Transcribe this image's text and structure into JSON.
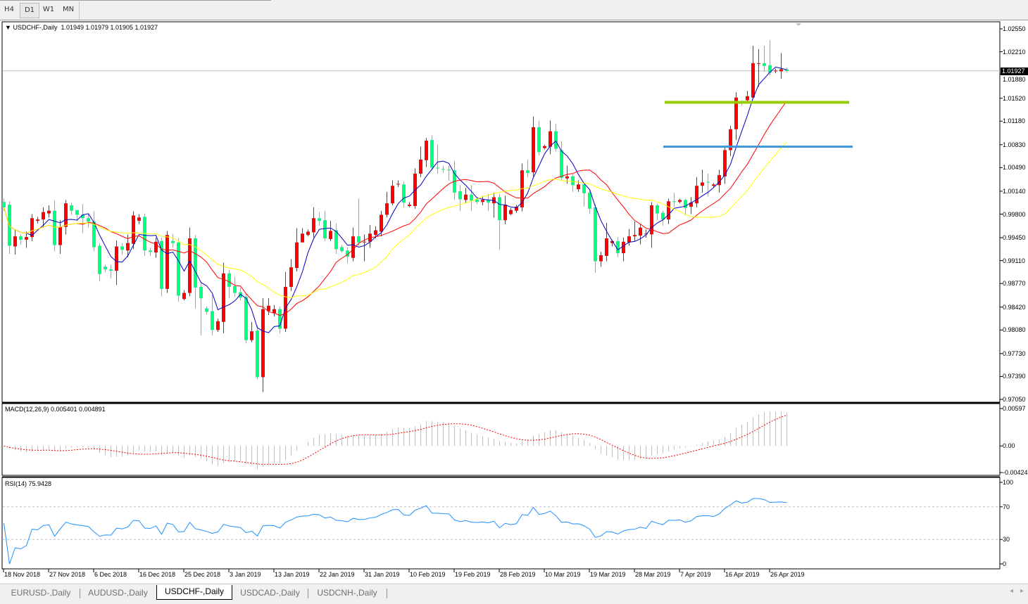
{
  "toolbar": {
    "timeframes": [
      "H4",
      "D1",
      "W1",
      "MN"
    ],
    "active": "D1"
  },
  "main": {
    "symbol_label": "USDCHF-,Daily",
    "ohlc_label": "1.01949 1.01979 1.01905 1.01927",
    "current_price": "1.01927",
    "price_axis_labels": [
      "1.02550",
      "1.02210",
      "1.01880",
      "1.01520",
      "1.01180",
      "1.00830",
      "1.00490",
      "1.00140",
      "0.99800",
      "0.99450",
      "0.99110",
      "0.98770",
      "0.98420",
      "0.98080",
      "0.97730",
      "0.97390",
      "0.97050"
    ]
  },
  "macd": {
    "label": "MACD(12,26,9) 0.005401 0.004891",
    "axis_labels": [
      "0.00597",
      "0.00",
      "-0.00424"
    ]
  },
  "rsi": {
    "label": "RSI(14) 75.9428",
    "axis_labels": [
      "100",
      "70",
      "30",
      "0"
    ]
  },
  "colors": {
    "bull": "#ff0000",
    "bear": "#00ff7f",
    "ma_fast": "#0000c8",
    "ma_mid": "#ff0000",
    "ma_slow": "#ffff00",
    "level_upper": "#99cc00",
    "level_lower": "#3c96dc",
    "macd_hist": "#c0c0c0",
    "macd_signal": "#ff0000",
    "rsi_line": "#1e90ff"
  },
  "tabs": [
    "EURUSD-,Daily",
    "AUDUSD-,Daily",
    "USDCHF-,Daily",
    "USDCAD-,Daily",
    "USDCNH-,Daily"
  ],
  "active_tab": "USDCHF-,Daily",
  "chart_data": {
    "type": "candlestick",
    "symbol": "USDCHF-",
    "timeframe": "Daily",
    "ylim": [
      0.9705,
      1.0255
    ],
    "x_tick_labels": [
      "18 Nov 2018",
      "27 Nov 2018",
      "6 Dec 2018",
      "16 Dec 2018",
      "25 Dec 2018",
      "3 Jan 2019",
      "13 Jan 2019",
      "22 Jan 2019",
      "31 Jan 2019",
      "10 Feb 2019",
      "19 Feb 2019",
      "28 Feb 2019",
      "10 Mar 2019",
      "19 Mar 2019",
      "28 Mar 2019",
      "7 Apr 2019",
      "16 Apr 2019",
      "26 Apr 2019"
    ],
    "horizontal_levels": [
      1.0146,
      1.008
    ],
    "candles_ohlc": [
      [
        0.9998,
        1.0003,
        0.9985,
        0.999
      ],
      [
        0.9994,
        0.9999,
        0.9921,
        0.9933
      ],
      [
        0.9932,
        0.9957,
        0.992,
        0.9947
      ],
      [
        0.9947,
        0.995,
        0.9935,
        0.9942
      ],
      [
        0.9942,
        0.9954,
        0.993,
        0.9946
      ],
      [
        0.9946,
        0.998,
        0.994,
        0.9974
      ],
      [
        0.997,
        0.9976,
        0.9966,
        0.9972
      ],
      [
        0.9972,
        0.999,
        0.996,
        0.9983
      ],
      [
        0.9981,
        0.9993,
        0.9975,
        0.9985
      ],
      [
        0.9985,
        1.0,
        0.9925,
        0.9934
      ],
      [
        0.9934,
        0.9971,
        0.9921,
        0.9961
      ],
      [
        0.9961,
        1.0001,
        0.995,
        0.9996
      ],
      [
        0.9993,
        0.9997,
        0.9979,
        0.9985
      ],
      [
        0.9986,
        0.9986,
        0.997,
        0.9979
      ],
      [
        0.9979,
        0.9995,
        0.9952,
        0.9974
      ],
      [
        0.9974,
        0.998,
        0.996,
        0.9969
      ],
      [
        0.9969,
        0.9984,
        0.9925,
        0.9931
      ],
      [
        0.9933,
        0.9937,
        0.988,
        0.9891
      ],
      [
        0.9902,
        0.9905,
        0.9894,
        0.9898
      ],
      [
        0.9898,
        0.9905,
        0.9885,
        0.9896
      ],
      [
        0.9896,
        0.9941,
        0.9875,
        0.9932
      ],
      [
        0.9932,
        0.9937,
        0.992,
        0.9927
      ],
      [
        0.9926,
        0.995,
        0.9916,
        0.9937
      ],
      [
        0.9936,
        0.9984,
        0.9928,
        0.9978
      ],
      [
        0.997,
        0.998,
        0.9965,
        0.9975
      ],
      [
        0.9976,
        0.9981,
        0.9918,
        0.9926
      ],
      [
        0.9926,
        0.993,
        0.9918,
        0.9924
      ],
      [
        0.9923,
        0.9945,
        0.9915,
        0.9939
      ],
      [
        0.994,
        0.9945,
        0.9858,
        0.9869
      ],
      [
        0.9869,
        0.9955,
        0.9863,
        0.9949
      ],
      [
        0.994,
        0.995,
        0.993,
        0.9937
      ],
      [
        0.9938,
        0.9944,
        0.985,
        0.9859
      ],
      [
        0.9854,
        0.9867,
        0.9852,
        0.9863
      ],
      [
        0.9863,
        0.996,
        0.9858,
        0.9944
      ],
      [
        0.9944,
        0.9949,
        0.984,
        0.9871
      ],
      [
        0.9872,
        0.9877,
        0.98,
        0.9855
      ],
      [
        0.984,
        0.9843,
        0.9831,
        0.9835
      ],
      [
        0.9836,
        0.986,
        0.98,
        0.9808
      ],
      [
        0.9808,
        0.9825,
        0.9805,
        0.9821
      ],
      [
        0.982,
        0.9908,
        0.9803,
        0.9892
      ],
      [
        0.9892,
        0.9897,
        0.9855,
        0.9872
      ],
      [
        0.9873,
        0.9887,
        0.9857,
        0.9863
      ],
      [
        0.9864,
        0.9871,
        0.9852,
        0.9856
      ],
      [
        0.9857,
        0.9862,
        0.9788,
        0.9793
      ],
      [
        0.9793,
        0.982,
        0.979,
        0.9806
      ],
      [
        0.9807,
        0.9815,
        0.9735,
        0.9738
      ],
      [
        0.9738,
        0.9855,
        0.9716,
        0.9839
      ],
      [
        0.9836,
        0.9855,
        0.983,
        0.9844
      ],
      [
        0.9833,
        0.9845,
        0.9828,
        0.9839
      ],
      [
        0.9839,
        0.9843,
        0.9803,
        0.981
      ],
      [
        0.981,
        0.9894,
        0.9805,
        0.9872
      ],
      [
        0.9872,
        0.9913,
        0.9866,
        0.9901
      ],
      [
        0.99,
        0.9959,
        0.9895,
        0.9938
      ],
      [
        0.9938,
        0.9959,
        0.994,
        0.9951
      ],
      [
        0.9949,
        0.9957,
        0.9947,
        0.9954
      ],
      [
        0.9953,
        0.999,
        0.9945,
        0.9974
      ],
      [
        0.9974,
        0.9983,
        0.9963,
        0.997
      ],
      [
        0.9971,
        0.9985,
        0.994,
        0.9944
      ],
      [
        0.9943,
        0.997,
        0.994,
        0.9955
      ],
      [
        0.9956,
        0.9966,
        0.9921,
        0.9928
      ],
      [
        0.9931,
        0.9934,
        0.9923,
        0.9925
      ],
      [
        0.9926,
        0.9931,
        0.9907,
        0.9917
      ],
      [
        0.9915,
        0.996,
        0.991,
        0.9947
      ],
      [
        0.9947,
        1.0003,
        0.9933,
        0.9938
      ],
      [
        0.9938,
        0.995,
        0.991,
        0.9939
      ],
      [
        0.9939,
        0.9964,
        0.993,
        0.9951
      ],
      [
        0.9949,
        0.9962,
        0.9944,
        0.9956
      ],
      [
        0.9954,
        0.9985,
        0.9947,
        0.9979
      ],
      [
        0.9979,
        1.0013,
        0.9975,
        0.9996
      ],
      [
        0.9996,
        1.003,
        0.9993,
        1.0022
      ],
      [
        1.0024,
        1.003,
        1.002,
        1.0025
      ],
      [
        1.0024,
        1.0028,
        0.999,
        0.9997
      ],
      [
        0.9992,
        0.9998,
        0.999,
        0.9994
      ],
      [
        0.9992,
        1.0048,
        0.9988,
        1.004
      ],
      [
        1.004,
        1.008,
        1.0035,
        1.0061
      ],
      [
        1.006,
        1.0093,
        1.005,
        1.0089
      ],
      [
        1.009,
        1.0097,
        1.0045,
        1.0049
      ],
      [
        1.0049,
        1.0083,
        1.004,
        1.0048
      ],
      [
        1.0047,
        1.0052,
        1.0041,
        1.0046
      ],
      [
        1.0046,
        1.0052,
        1.003,
        1.0045
      ],
      [
        1.0045,
        1.0059,
        1.0001,
        1.0012
      ],
      [
        1.0014,
        1.0023,
        0.9985,
        1.0002
      ],
      [
        1.0001,
        1.0019,
        0.9996,
        1.0009
      ],
      [
        1.0009,
        1.0023,
        0.9985,
        1.0
      ],
      [
        1.0002,
        1.0005,
        0.9995,
        0.9998
      ],
      [
        0.9998,
        1.0007,
        0.9993,
        1.0001
      ],
      [
        1.0001,
        1.001,
        0.9985,
        0.9997
      ],
      [
        0.9996,
        1.0012,
        0.9975,
        1.0005
      ],
      [
        1.0005,
        1.001,
        0.9927,
        0.9971
      ],
      [
        0.9971,
        1.0007,
        0.9965,
        0.9994
      ],
      [
        0.998,
        0.9989,
        0.9978,
        0.9986
      ],
      [
        0.9985,
        0.9994,
        0.9982,
        0.9991
      ],
      [
        0.999,
        1.0055,
        0.9984,
        1.0045
      ],
      [
        1.0045,
        1.0061,
        1.0035,
        1.0041
      ],
      [
        1.0042,
        1.0125,
        1.0036,
        1.0109
      ],
      [
        1.0109,
        1.0119,
        1.0067,
        1.0072
      ],
      [
        1.0078,
        1.0083,
        1.0076,
        1.0081
      ],
      [
        1.008,
        1.0119,
        1.0069,
        1.0103
      ],
      [
        1.0103,
        1.0114,
        1.0073,
        1.0077
      ],
      [
        1.0075,
        1.0088,
        1.003,
        1.0034
      ],
      [
        1.0033,
        1.0052,
        1.0025,
        1.0036
      ],
      [
        1.0036,
        1.0039,
        1.0013,
        1.0023
      ],
      [
        1.0017,
        1.003,
        1.0013,
        1.0024
      ],
      [
        1.0024,
        1.0027,
        0.9991,
        1.0011
      ],
      [
        1.0012,
        1.0015,
        0.998,
        0.9988
      ],
      [
        0.999,
        0.9995,
        0.9893,
        0.991
      ],
      [
        0.991,
        0.9924,
        0.9902,
        0.9919
      ],
      [
        0.9918,
        0.9967,
        0.991,
        0.9944
      ],
      [
        0.9937,
        0.9942,
        0.9932,
        0.994
      ],
      [
        0.994,
        0.9946,
        0.9916,
        0.9922
      ],
      [
        0.9922,
        0.9945,
        0.991,
        0.9939
      ],
      [
        0.9938,
        0.9958,
        0.9933,
        0.9947
      ],
      [
        0.9947,
        0.9969,
        0.994,
        0.9949
      ],
      [
        0.9948,
        0.9965,
        0.9935,
        0.996
      ],
      [
        0.9951,
        0.9957,
        0.9945,
        0.9951
      ],
      [
        0.995,
        0.9998,
        0.993,
        0.9993
      ],
      [
        0.9993,
        0.9995,
        0.9971,
        0.9981
      ],
      [
        0.9982,
        0.9985,
        0.9963,
        0.9972
      ],
      [
        0.9972,
        1.0003,
        0.9965,
        0.9999
      ],
      [
        0.9999,
        1.0012,
        0.9991,
        0.9998
      ],
      [
        0.9998,
        1.0003,
        0.9996,
        1.0001
      ],
      [
        1.0001,
        1.0003,
        0.9978,
        0.9989
      ],
      [
        0.9991,
        1.0005,
        0.998,
        0.9997
      ],
      [
        0.9996,
        1.0035,
        0.999,
        1.0022
      ],
      [
        1.0022,
        1.0046,
        1.0012,
        1.0027
      ],
      [
        1.0028,
        1.004,
        1.0006,
        1.0027
      ],
      [
        1.0022,
        1.0026,
        1.002,
        1.0024
      ],
      [
        1.0023,
        1.0046,
        1.0012,
        1.0038
      ],
      [
        1.0036,
        1.0079,
        1.0025,
        1.0075
      ],
      [
        1.0075,
        1.0111,
        1.0066,
        1.0106
      ],
      [
        1.0106,
        1.0161,
        1.009,
        1.0153
      ],
      [
        1.0146,
        1.0149,
        1.0141,
        1.0144
      ],
      [
        1.0149,
        1.0163,
        1.0147,
        1.0155
      ],
      [
        1.0153,
        1.023,
        1.0151,
        1.0204
      ],
      [
        1.0203,
        1.0225,
        1.0169,
        1.0204
      ],
      [
        1.0204,
        1.023,
        1.0191,
        1.02
      ],
      [
        1.0201,
        1.0238,
        1.0186,
        1.019
      ],
      [
        1.0192,
        1.0196,
        1.0189,
        1.0193
      ],
      [
        1.0192,
        1.0219,
        1.0181,
        1.0195
      ],
      [
        1.01949,
        1.01979,
        1.01905,
        1.01927
      ]
    ]
  }
}
